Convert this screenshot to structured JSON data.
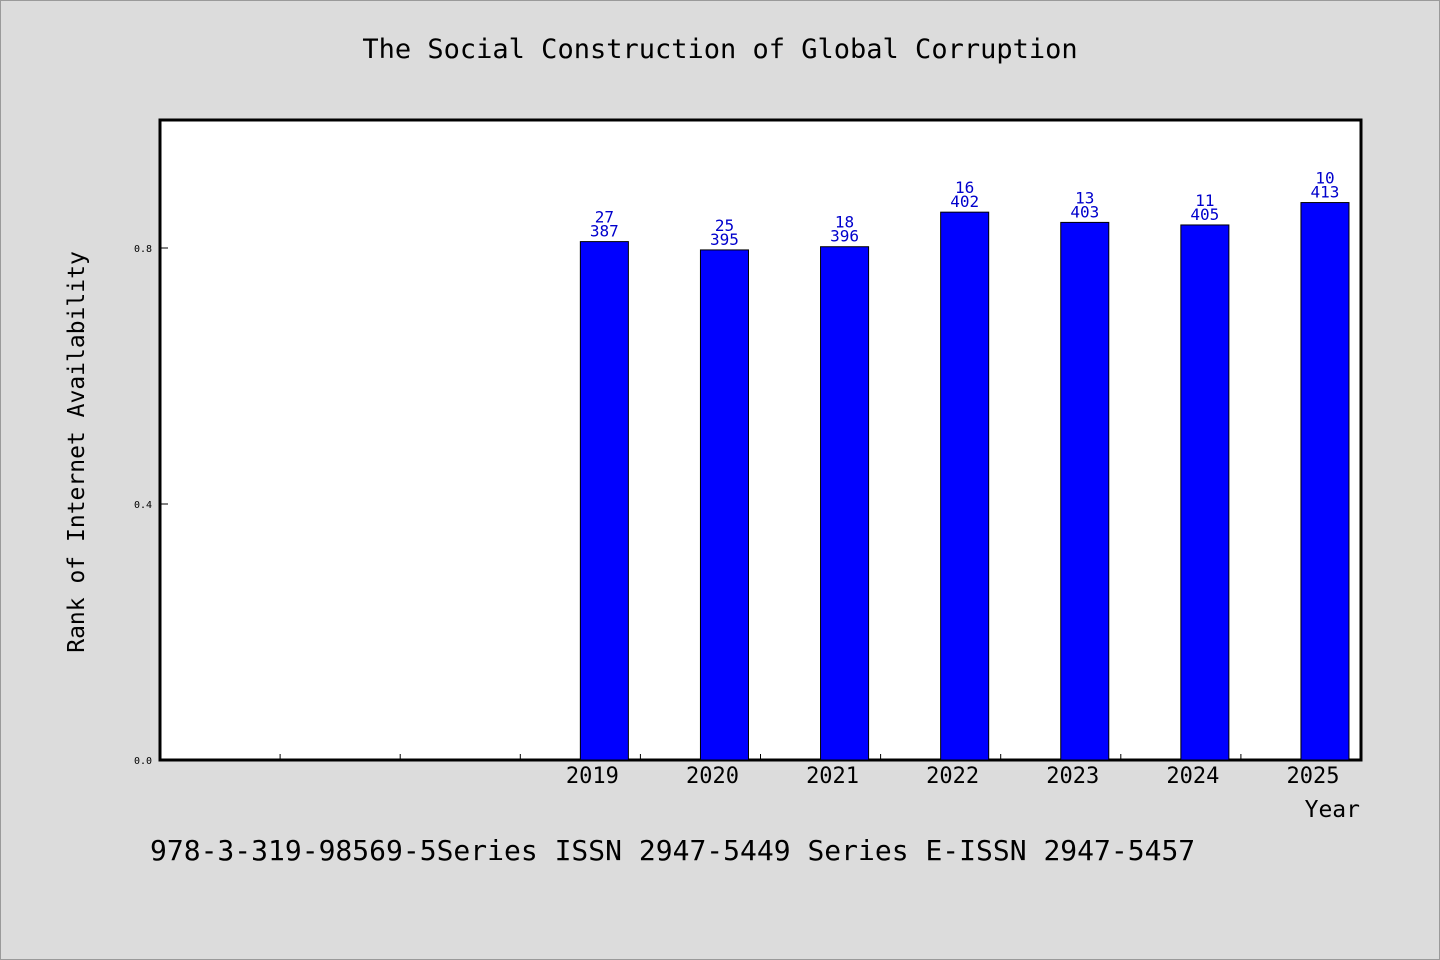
{
  "chart_data": {
    "type": "bar",
    "title": "The Social Construction of Global Corruption",
    "xlabel": "Year",
    "ylabel": "Rank of Internet Availability",
    "categories": [
      "",
      "",
      "",
      "2019",
      "2020",
      "2021",
      "2022",
      "2023",
      "2024",
      "2025"
    ],
    "values": [
      null,
      null,
      null,
      0.81,
      0.797,
      0.802,
      0.856,
      0.84,
      0.836,
      0.871
    ],
    "rank_labels": [
      "",
      "",
      "",
      "27",
      "25",
      "18",
      "16",
      "13",
      "11",
      "10"
    ],
    "count_labels": [
      "",
      "",
      "",
      "387",
      "395",
      "396",
      "402",
      "403",
      "405",
      "413"
    ],
    "yticks": [
      0.0,
      0.4,
      0.8
    ],
    "ytick_labels": [
      "0.0",
      "0.4",
      "0.8"
    ],
    "ylim": [
      0,
      1.0
    ],
    "grid": false,
    "legend": "none",
    "bar_color": "#0000ff",
    "label_color": "#0000cc"
  },
  "footer": {
    "note": "978-3-319-98569-5Series ISSN 2947-5449 Series E-ISSN 2947-5457"
  }
}
